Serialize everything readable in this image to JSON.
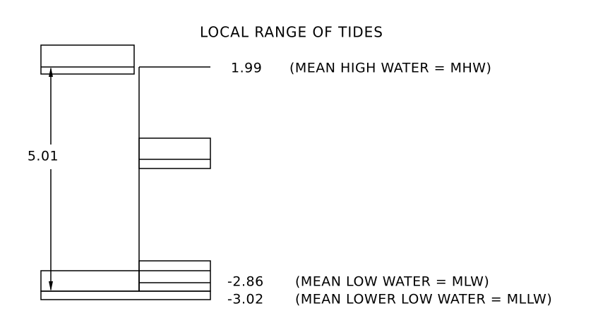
{
  "title": "LOCAL RANGE OF TIDES",
  "dimension": "5.01",
  "levels": [
    {
      "value": "1.99",
      "label": "(MEAN HIGH WATER = MHW)"
    },
    {
      "value": "-2.86",
      "label": "(MEAN LOW WATER = MLW)"
    },
    {
      "value": "-3.02",
      "label": "(MEAN LOWER LOW WATER = MLLW)"
    }
  ]
}
